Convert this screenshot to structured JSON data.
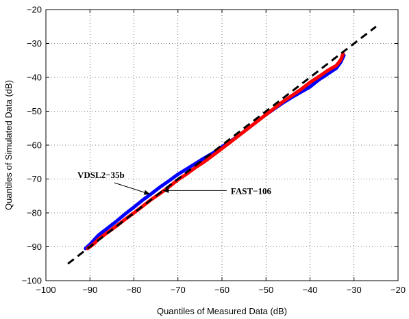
{
  "chart_data": {
    "type": "line",
    "title": "",
    "xlabel": "Quantiles of Measured Data (dB)",
    "ylabel": "Quantiles of Simulated Data (dB)",
    "xlim": [
      -100,
      -20
    ],
    "ylim": [
      -100,
      -20
    ],
    "xticks": [
      -100,
      -90,
      -80,
      -70,
      -60,
      -50,
      -40,
      -30,
      -20
    ],
    "yticks": [
      -100,
      -90,
      -80,
      -70,
      -60,
      -50,
      -40,
      -30,
      -20
    ],
    "grid": true,
    "grid_style": "dotted",
    "legend": "none",
    "series": [
      {
        "color": "#0000ff",
        "style": "solid",
        "points": [
          [
            -91,
            -90.5
          ],
          [
            -90,
            -89.3
          ],
          [
            -88,
            -86.5
          ],
          [
            -86,
            -84.5
          ],
          [
            -84,
            -82.5
          ],
          [
            -82,
            -80.3
          ],
          [
            -80,
            -78.3
          ],
          [
            -78,
            -76.2
          ],
          [
            -76,
            -74.3
          ],
          [
            -74,
            -72.3
          ],
          [
            -72,
            -70.5
          ],
          [
            -70,
            -68.6
          ],
          [
            -68,
            -67.0
          ],
          [
            -66,
            -65.4
          ],
          [
            -64,
            -63.8
          ],
          [
            -62,
            -62.3
          ],
          [
            -60,
            -60.5
          ],
          [
            -58,
            -58.8
          ],
          [
            -56,
            -57.0
          ],
          [
            -54,
            -55.0
          ],
          [
            -52,
            -53.0
          ],
          [
            -50,
            -51.0
          ],
          [
            -48,
            -49.2
          ],
          [
            -46,
            -47.4
          ],
          [
            -44,
            -45.8
          ],
          [
            -42,
            -44.3
          ],
          [
            -40,
            -42.8
          ],
          [
            -38,
            -40.7
          ],
          [
            -36,
            -39.0
          ],
          [
            -34,
            -37.3
          ],
          [
            -33,
            -35.5
          ],
          [
            -32.3,
            -33.5
          ]
        ]
      },
      {
        "color": "#ff0000",
        "style": "solid",
        "points": [
          [
            -90.5,
            -90.5
          ],
          [
            -89,
            -89.0
          ],
          [
            -88,
            -87.7
          ],
          [
            -86,
            -85.8
          ],
          [
            -84,
            -83.9
          ],
          [
            -82,
            -81.9
          ],
          [
            -80,
            -80.0
          ],
          [
            -78,
            -78.0
          ],
          [
            -76,
            -76.0
          ],
          [
            -74,
            -74.2
          ],
          [
            -72,
            -72.3
          ],
          [
            -70,
            -70.2
          ],
          [
            -68,
            -68.5
          ],
          [
            -66,
            -66.6
          ],
          [
            -64,
            -64.9
          ],
          [
            -62,
            -63.0
          ],
          [
            -60,
            -61.0
          ],
          [
            -58,
            -59.0
          ],
          [
            -56,
            -57.0
          ],
          [
            -54,
            -55.0
          ],
          [
            -52,
            -53.0
          ],
          [
            -50,
            -51.0
          ],
          [
            -48,
            -49.0
          ],
          [
            -46,
            -47.0
          ],
          [
            -44,
            -45.3
          ],
          [
            -42,
            -43.5
          ],
          [
            -40,
            -41.5
          ],
          [
            -38,
            -39.8
          ],
          [
            -36,
            -38.0
          ],
          [
            -34,
            -36.5
          ],
          [
            -33,
            -34.8
          ],
          [
            -32.5,
            -33.0
          ]
        ]
      },
      {
        "color": "#000000",
        "style": "dashed",
        "points": [
          [
            -95,
            -95
          ],
          [
            -25,
            -25
          ]
        ]
      }
    ],
    "annotations": [
      {
        "text": "VDSL2−35b",
        "target": [
          -76.3,
          -74.5
        ],
        "label_at": [
          -86,
          -69.5
        ]
      },
      {
        "text": "FAST−106",
        "target": [
          -73.5,
          -73.4
        ],
        "label_at": [
          -58,
          -73.4
        ]
      }
    ]
  }
}
